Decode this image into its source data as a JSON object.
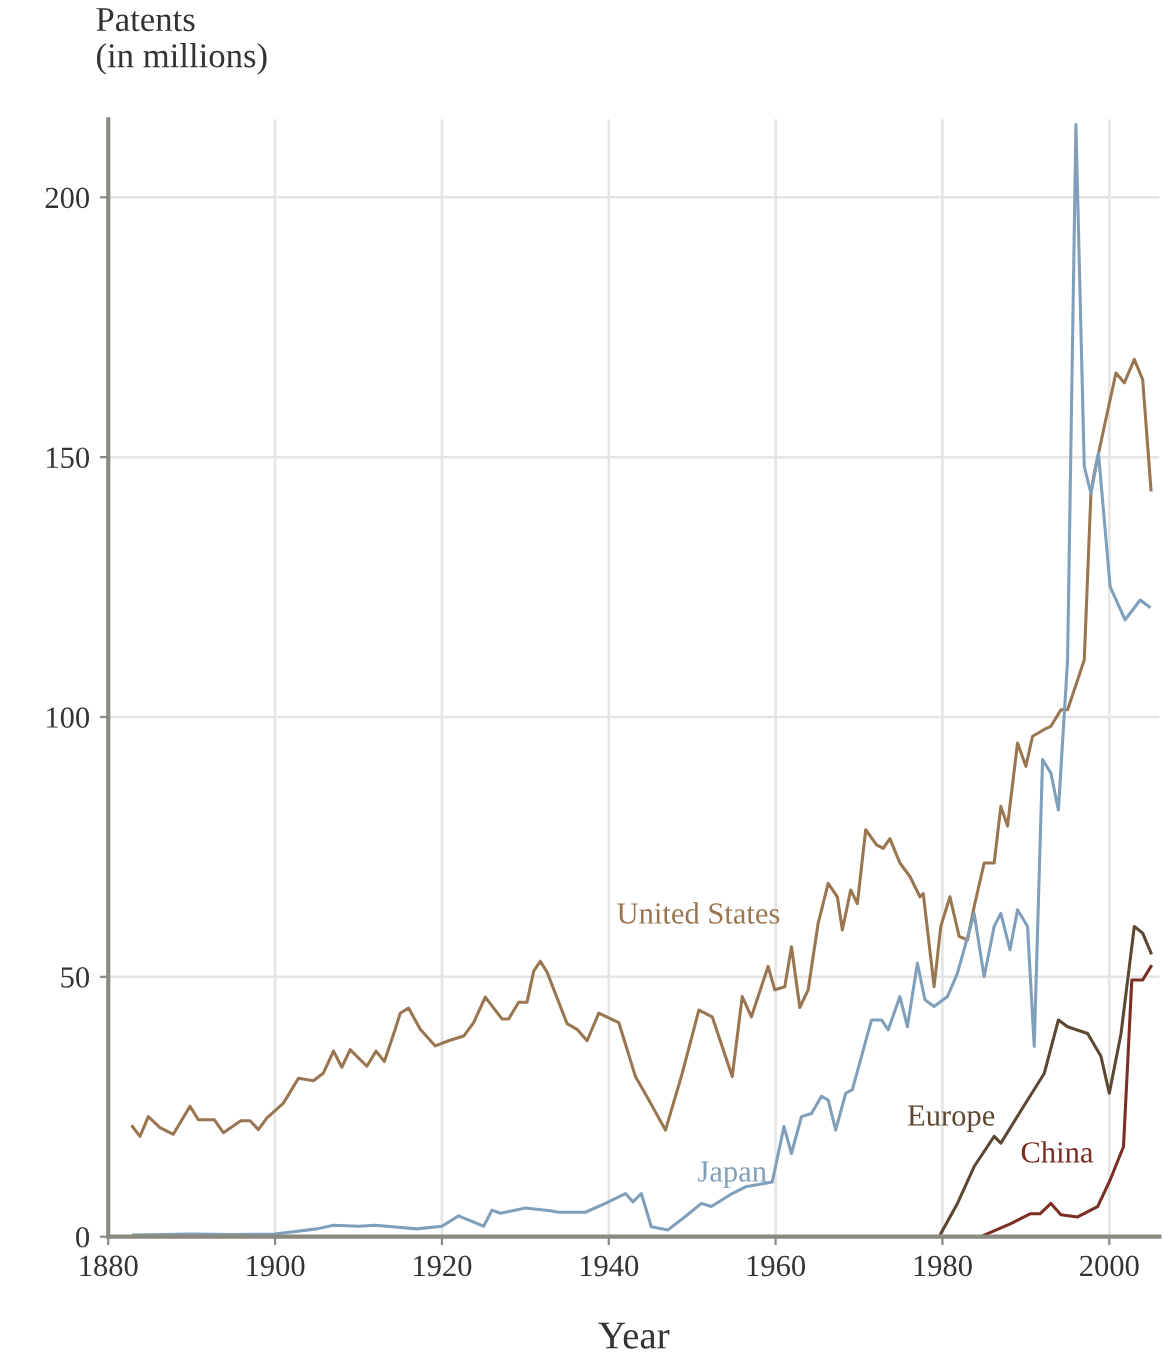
{
  "chart_data": {
    "type": "line",
    "xlabel": "Year",
    "ylabel": "Patents\n(in millions)",
    "xlim": [
      1880,
      2006
    ],
    "ylim": [
      0,
      215
    ],
    "xticks": [
      1880,
      1900,
      1920,
      1940,
      1960,
      1980,
      2000
    ],
    "yticks": [
      0,
      50,
      100,
      150,
      200
    ],
    "grid": true,
    "legend": false,
    "marker": "none",
    "line_style": "solid",
    "series": [
      {
        "name": "United States",
        "color": "#9a7650",
        "x": [
          1882.9,
          1883.8,
          1884.8,
          1886.2,
          1887.8,
          1889.8,
          1890.8,
          1892.7,
          1893.8,
          1895.9,
          1897,
          1898,
          1899,
          1901,
          1902.8,
          1904.6,
          1905.8,
          1907,
          1908,
          1909,
          1911,
          1912.1,
          1913.1,
          1914.4,
          1915,
          1916,
          1917.4,
          1919.2,
          1920.8,
          1922.6,
          1923.8,
          1925.2,
          1927.2,
          1928,
          1929.2,
          1930.2,
          1931,
          1931.8,
          1932.6,
          1935,
          1936.2,
          1937.4,
          1938.8,
          1941.2,
          1943.2,
          1944.8,
          1946.8,
          1948.8,
          1950.8,
          1952.4,
          1954.8,
          1956,
          1957.1,
          1959.1,
          1959.9,
          1961.1,
          1961.9,
          1962.9,
          1963.9,
          1965.1,
          1966.3,
          1967.4,
          1968,
          1969,
          1969.8,
          1970.8,
          1972.1,
          1972.9,
          1973.7,
          1974.9,
          1976.1,
          1977.3,
          1977.7,
          1979,
          1979.8,
          1980.9,
          1982,
          1983,
          1983.8,
          1985,
          1986.2,
          1987,
          1987.8,
          1989,
          1990,
          1990.8,
          1992.2,
          1993,
          1994.2,
          1995,
          1996.2,
          1997,
          1997.8,
          1998.2,
          1999.4,
          2000.8,
          2001.8,
          2003,
          2004,
          2005
        ],
        "values": [
          21.2,
          19.3,
          23.1,
          21,
          19.7,
          25.1,
          22.5,
          22.5,
          20,
          22.3,
          22.3,
          20.6,
          22.8,
          25.7,
          30.5,
          30,
          31.5,
          35.7,
          32.6,
          36,
          32.8,
          35.7,
          33.7,
          39.9,
          43,
          44,
          39.9,
          36.7,
          37.7,
          38.6,
          41.2,
          46.1,
          41.9,
          41.9,
          45.1,
          45.1,
          51.1,
          53,
          50.9,
          41,
          39.9,
          37.7,
          43,
          41.2,
          30.8,
          26.3,
          20.5,
          31.4,
          43.6,
          42.3,
          30.8,
          46.2,
          42.3,
          52,
          47.5,
          48.1,
          55.8,
          44.1,
          47.5,
          60.3,
          68,
          65.4,
          59,
          66.7,
          64.1,
          78.3,
          75.4,
          74.7,
          76.6,
          71.9,
          69.3,
          65.4,
          66,
          48.1,
          59.7,
          65.4,
          57.8,
          57.1,
          63.5,
          71.9,
          71.9,
          82.8,
          79,
          95,
          90.5,
          96.3,
          97.6,
          98.2,
          101.4,
          101.4,
          107.1,
          111,
          143.1,
          146.9,
          155.9,
          166.2,
          164.3,
          168.8,
          164.9,
          143.7
        ]
      },
      {
        "name": "Japan",
        "color": "#7f9fba",
        "x": [
          1883,
          1890,
          1895,
          1900,
          1905,
          1907,
          1910,
          1912,
          1917,
          1920,
          1922,
          1925,
          1926,
          1927,
          1930,
          1933,
          1934,
          1937.2,
          1939.6,
          1942,
          1942.9,
          1943.9,
          1945.1,
          1947.1,
          1949.1,
          1951.1,
          1952.3,
          1954.8,
          1956.4,
          1959.6,
          1961,
          1961.9,
          1963.1,
          1964.3,
          1965.5,
          1966.3,
          1967.2,
          1968.4,
          1969.2,
          1971.5,
          1972.7,
          1973.5,
          1974.9,
          1975.8,
          1977,
          1977.9,
          1979,
          1980.6,
          1981.8,
          1983.8,
          1985,
          1986.2,
          1987,
          1988.1,
          1989,
          1990.2,
          1991,
          1992,
          1993,
          1993.9,
          1995,
          1996,
          1997,
          1997.8,
          1998.7,
          2000.1,
          2001.9,
          2003.7,
          2004.8
        ],
        "values": [
          0.3,
          0.5,
          0.4,
          0.5,
          1.5,
          2.2,
          2,
          2.2,
          1.5,
          2,
          4,
          2,
          5.1,
          4.5,
          5.5,
          5,
          4.7,
          4.7,
          6.4,
          8.3,
          6.7,
          8.3,
          1.9,
          1.3,
          3.8,
          6.4,
          5.8,
          8.3,
          9.6,
          10.5,
          21.2,
          16,
          23.1,
          23.7,
          27,
          26.3,
          20.5,
          27.6,
          28.3,
          41.7,
          41.7,
          39.8,
          46.2,
          40.4,
          52.6,
          45.6,
          44.3,
          46.2,
          50.7,
          62.2,
          50,
          59.7,
          62.2,
          55.2,
          62.9,
          59.7,
          36.6,
          91.8,
          89.2,
          82.1,
          111,
          214,
          148.2,
          143,
          150.8,
          125.1,
          118.7,
          122.5,
          121.2
        ]
      },
      {
        "name": "Europe",
        "color": "#5c4731",
        "x": [
          1979.8,
          1981.8,
          1983.8,
          1986.2,
          1987,
          1989.7,
          1992.2,
          1993.9,
          1995,
          1997.4,
          1999,
          2000,
          2001.4,
          2003,
          2004,
          2005
        ],
        "values": [
          0.6,
          6.4,
          13.5,
          19.3,
          18,
          25,
          31.4,
          41.7,
          40.4,
          39.1,
          34.7,
          27.6,
          39,
          59.7,
          58.4,
          54.6
        ]
      },
      {
        "name": "China",
        "color": "#7a2e24",
        "x": [
          1985,
          1988.2,
          1990.5,
          1991.7,
          1993,
          1994.2,
          1996.2,
          1998.6,
          2000.1,
          2001.7,
          2002.7,
          2004,
          2005
        ],
        "values": [
          0.3,
          2.5,
          4.4,
          4.4,
          6.4,
          4.2,
          3.8,
          5.8,
          10.9,
          17.3,
          49.4,
          49.4,
          52
        ]
      }
    ]
  }
}
